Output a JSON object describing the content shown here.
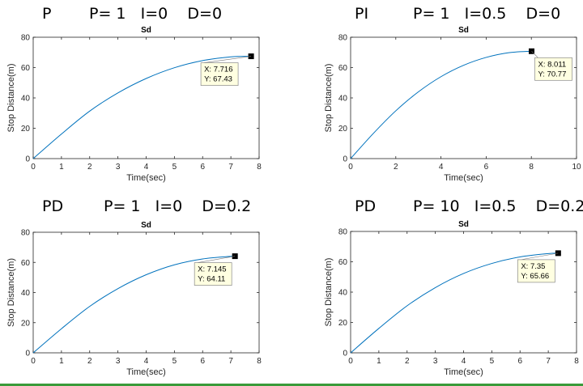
{
  "colors": {
    "curve": "#0072bd",
    "axis": "#262626",
    "datatip_bg": "#ffffe1",
    "marker": "#000000",
    "accent_line": "#3a9b3a"
  },
  "panels": [
    {
      "label_mode": "P",
      "label_params": "P= 1   I=0    D=0"
    },
    {
      "label_mode": "PI",
      "label_params": "P= 1   I=0.5    D=0"
    },
    {
      "label_mode": "PD",
      "label_params": "P= 1   I=0    D=0.2"
    },
    {
      "label_mode": "PD",
      "label_params": "P= 10   I=0.5    D=0.2"
    }
  ],
  "chart_data": [
    {
      "type": "line",
      "title": "Sd",
      "xlabel": "Time(sec)",
      "ylabel": "Stop Distance(m)",
      "xlim": [
        0,
        8
      ],
      "ylim": [
        0,
        80
      ],
      "xticks": [
        0,
        1,
        2,
        3,
        4,
        5,
        6,
        7,
        8
      ],
      "yticks": [
        0,
        20,
        40,
        60,
        80
      ],
      "x": [
        0,
        1,
        2,
        3,
        4,
        5,
        6,
        7,
        7.716
      ],
      "y": [
        0,
        16.2,
        31.3,
        43.3,
        52.8,
        59.9,
        64.6,
        67.1,
        67.43
      ],
      "datatip": {
        "x": 7.716,
        "y": 67.43,
        "x_label": "X: 7.716",
        "y_label": "Y: 67.43"
      }
    },
    {
      "type": "line",
      "title": "Sd",
      "xlabel": "Time(sec)",
      "ylabel": "Stop Distance(m)",
      "xlim": [
        0,
        10
      ],
      "ylim": [
        0,
        80
      ],
      "xticks": [
        0,
        2,
        4,
        6,
        8,
        10
      ],
      "yticks": [
        0,
        20,
        40,
        60,
        80
      ],
      "x": [
        0,
        1,
        2,
        3,
        4,
        5,
        6,
        7,
        8.011
      ],
      "y": [
        0,
        16.5,
        31.5,
        44,
        54,
        61.5,
        66.7,
        69.8,
        70.77
      ],
      "datatip": {
        "x": 8.011,
        "y": 70.77,
        "x_label": "X: 8.011",
        "y_label": "Y: 70.77"
      }
    },
    {
      "type": "line",
      "title": "Sd",
      "xlabel": "Time(sec)",
      "ylabel": "Stop Distance(m)",
      "xlim": [
        0,
        8
      ],
      "ylim": [
        0,
        80
      ],
      "xticks": [
        0,
        1,
        2,
        3,
        4,
        5,
        6,
        7,
        8
      ],
      "yticks": [
        0,
        20,
        40,
        60,
        80
      ],
      "x": [
        0,
        1,
        2,
        3,
        4,
        5,
        6,
        7,
        7.145
      ],
      "y": [
        0,
        16,
        30.8,
        42.6,
        51.8,
        58.4,
        62.3,
        64,
        64.11
      ],
      "datatip": {
        "x": 7.145,
        "y": 64.11,
        "x_label": "X: 7.145",
        "y_label": "Y: 64.11"
      }
    },
    {
      "type": "line",
      "title": "Sd",
      "xlabel": "Time(sec)",
      "ylabel": "Stop Distance(m)",
      "xlim": [
        0,
        8
      ],
      "ylim": [
        0,
        80
      ],
      "xticks": [
        0,
        1,
        2,
        3,
        4,
        5,
        6,
        7,
        8
      ],
      "yticks": [
        0,
        20,
        40,
        60,
        80
      ],
      "x": [
        0,
        1,
        2,
        3,
        4,
        5,
        6,
        7,
        7.35
      ],
      "y": [
        0,
        16.1,
        31,
        43,
        52.3,
        58.9,
        63.2,
        65.4,
        65.66
      ],
      "datatip": {
        "x": 7.35,
        "y": 65.66,
        "x_label": "X: 7.35",
        "y_label": "Y: 65.66"
      }
    }
  ]
}
